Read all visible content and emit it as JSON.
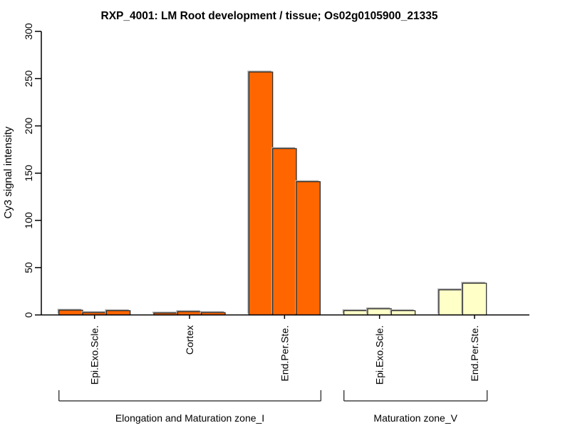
{
  "window": {
    "background": "#FFFFFF"
  },
  "chart_data": {
    "type": "bar",
    "title": "RXP_4001: LM Root development / tissue; Os02g0105900_21335",
    "ylabel": "Cy3 signal intensity",
    "xlabel": "",
    "ylim": [
      0,
      300
    ],
    "yticks": [
      0,
      50,
      100,
      150,
      200,
      250,
      300
    ],
    "grid": false,
    "legend": "none",
    "bar_border_color": "#262626",
    "bar_shadow_color": "#ABABAB",
    "axis_color": "#000000",
    "bracket_color": "#444444",
    "categories": [
      "Epi.Exo.Scle.",
      "Cortex",
      "End.Per.Ste.",
      "Epi.Exo.Scle.",
      "End.Per.Ste."
    ],
    "groups": [
      {
        "label": "Epi.Exo.Scle.",
        "zone": "Elongation and Maturation zone_I",
        "color": "#FF6600",
        "values": [
          5,
          2.5,
          4.5
        ]
      },
      {
        "label": "Cortex",
        "zone": "Elongation and Maturation zone_I",
        "color": "#FF6600",
        "values": [
          2,
          3.5,
          2.5
        ]
      },
      {
        "label": "End.Per.Ste.",
        "zone": "Elongation and Maturation zone_I",
        "color": "#FF6600",
        "values": [
          257,
          176,
          141
        ]
      },
      {
        "label": "Epi.Exo.Scle.",
        "zone": "Maturation zone_V",
        "color": "#FFFFC8",
        "values": [
          4.5,
          6.5,
          4.5
        ]
      },
      {
        "label": "End.Per.Ste.",
        "zone": "Maturation zone_V",
        "color": "#FFFFC8",
        "values": [
          26.5,
          33.5
        ]
      }
    ],
    "zone_brackets": [
      {
        "label": "Elongation and Maturation zone_I",
        "group_indices": [
          0,
          1,
          2
        ]
      },
      {
        "label": "Maturation zone_V",
        "group_indices": [
          3,
          4
        ]
      }
    ]
  }
}
